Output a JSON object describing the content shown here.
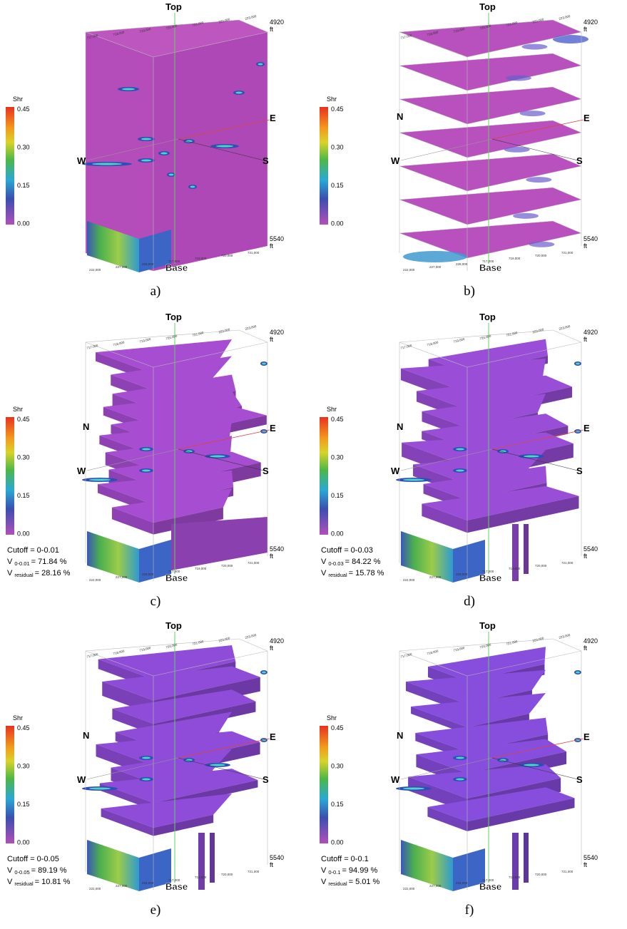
{
  "coordinates": {
    "top_edge": [
      "717,000",
      "718,000",
      "719,000",
      "720,000",
      "721,000",
      "222,000",
      "223,000"
    ],
    "bottom_edge": [
      "222,000",
      "227,000",
      "228,000",
      "717,000",
      "719,000",
      "720,000",
      "721,000"
    ]
  },
  "panels": [
    {
      "caption": "a)",
      "colorbar": {
        "title": "Shr",
        "ticks": [
          "0.45",
          "0.30",
          "0.15",
          "0.00"
        ]
      },
      "compass": {
        "top": "Top",
        "base": "Base",
        "west": "W",
        "east": "E",
        "south": "S"
      },
      "depth_top": "4920",
      "depth_bottom": "5540",
      "depth_unit": "ft"
    },
    {
      "caption": "b)",
      "colorbar": {
        "title": "Shr",
        "ticks": [
          "0.45",
          "0.30",
          "0.15",
          "0.00"
        ]
      },
      "compass": {
        "top": "Top",
        "base": "Base",
        "north": "N",
        "west": "W",
        "east": "E",
        "south": "S"
      },
      "depth_top": "4920",
      "depth_bottom": "5540",
      "depth_unit": "ft"
    },
    {
      "caption": "c)",
      "colorbar": {
        "title": "Shr",
        "ticks": [
          "0.45",
          "0.30",
          "0.15",
          "0.00"
        ]
      },
      "compass": {
        "top": "Top",
        "base": "Base",
        "north": "N",
        "west": "W",
        "east": "E",
        "south": "S"
      },
      "depth_top": "4920",
      "depth_bottom": "5540",
      "depth_unit": "ft",
      "cutoff": {
        "label": "Cutoff = 0-0.01",
        "volume_symbol": "V",
        "volume_subscript": "0-0.01",
        "volume_value": "= 71.84 %",
        "residual_symbol": "V",
        "residual_subscript": "residual",
        "residual_value": "= 28.16 %"
      }
    },
    {
      "caption": "d)",
      "colorbar": {
        "title": "Shr",
        "ticks": [
          "0.45",
          "0.30",
          "0.15",
          "0.00"
        ]
      },
      "compass": {
        "top": "Top",
        "base": "Base",
        "north": "N",
        "west": "W",
        "east": "E",
        "south": "S"
      },
      "depth_top": "4920",
      "depth_bottom": "5540",
      "depth_unit": "ft",
      "cutoff": {
        "label": "Cutoff = 0-0.03",
        "volume_symbol": "V",
        "volume_subscript": "0-0.03",
        "volume_value": "= 84.22 %",
        "residual_symbol": "V",
        "residual_subscript": "residual",
        "residual_value": "= 15.78 %"
      }
    },
    {
      "caption": "e)",
      "colorbar": {
        "title": "Shr",
        "ticks": [
          "0.45",
          "0.30",
          "0.15",
          "0.00"
        ]
      },
      "compass": {
        "top": "Top",
        "base": "Base",
        "north": "N",
        "west": "W",
        "east": "E",
        "south": "S"
      },
      "depth_top": "4920",
      "depth_bottom": "5540",
      "depth_unit": "ft",
      "cutoff": {
        "label": "Cutoff = 0-0.05",
        "volume_symbol": "V",
        "volume_subscript": "0-0.05",
        "volume_value": "= 89.19 %",
        "residual_symbol": "V",
        "residual_subscript": "residual",
        "residual_value": "= 10.81 %"
      }
    },
    {
      "caption": "f)",
      "colorbar": {
        "title": "Shr",
        "ticks": [
          "0.45",
          "0.30",
          "0.15",
          "0.00"
        ]
      },
      "compass": {
        "top": "Top",
        "base": "Base",
        "north": "N",
        "west": "W",
        "east": "E",
        "south": "S"
      },
      "depth_top": "4920",
      "depth_bottom": "5540",
      "depth_unit": "ft",
      "cutoff": {
        "label": "Cutoff = 0-0.1",
        "volume_symbol": "V",
        "volume_subscript": "0-0.1",
        "volume_value": "= 94.99 %",
        "residual_symbol": "V",
        "residual_subscript": "residual",
        "residual_value": "= 5.01 %"
      }
    }
  ]
}
